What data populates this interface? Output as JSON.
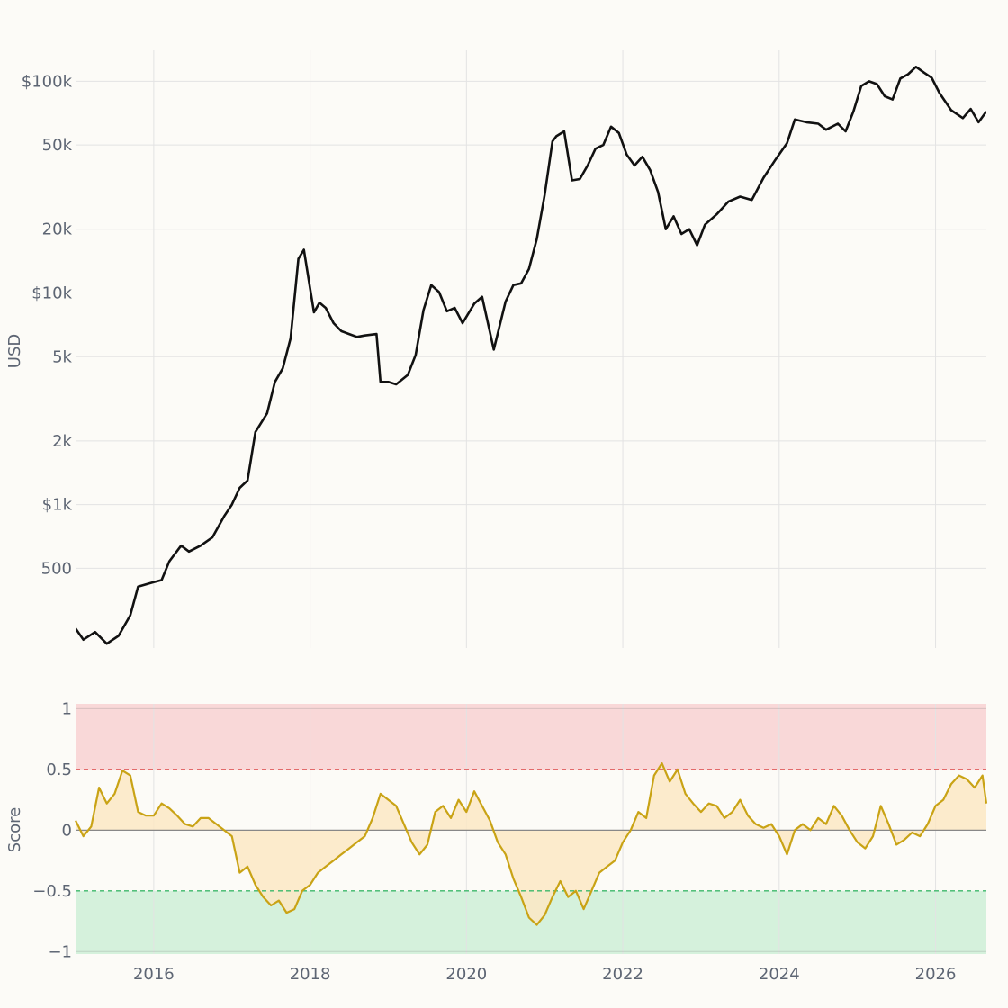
{
  "chart_data": [
    {
      "type": "line",
      "title": "",
      "xlabel": "",
      "ylabel": "USD",
      "yscale": "log",
      "xlim": [
        2015.0,
        2026.65
      ],
      "ylim": [
        210,
        140000
      ],
      "grid": true,
      "x_ticks": [
        {
          "value": 2016,
          "label": "2016"
        },
        {
          "value": 2018,
          "label": "2018"
        },
        {
          "value": 2020,
          "label": "2020"
        },
        {
          "value": 2022,
          "label": "2022"
        },
        {
          "value": 2024,
          "label": "2024"
        },
        {
          "value": 2026,
          "label": "2026"
        }
      ],
      "y_ticks": [
        {
          "value": 500,
          "label": "500"
        },
        {
          "value": 1000,
          "label": "$1k"
        },
        {
          "value": 2000,
          "label": "2k"
        },
        {
          "value": 5000,
          "label": "5k"
        },
        {
          "value": 10000,
          "label": "$10k"
        },
        {
          "value": 20000,
          "label": "20k"
        },
        {
          "value": 50000,
          "label": "50k"
        },
        {
          "value": 100000,
          "label": "$100k"
        }
      ],
      "series": [
        {
          "color": "#111111",
          "x": [
            2015.0,
            2015.1,
            2015.25,
            2015.4,
            2015.55,
            2015.7,
            2015.8,
            2015.9,
            2016.0,
            2016.1,
            2016.2,
            2016.35,
            2016.45,
            2016.6,
            2016.75,
            2016.9,
            2017.0,
            2017.1,
            2017.2,
            2017.3,
            2017.45,
            2017.55,
            2017.65,
            2017.75,
            2017.85,
            2017.92,
            2018.0,
            2018.05,
            2018.12,
            2018.2,
            2018.3,
            2018.4,
            2018.5,
            2018.6,
            2018.7,
            2018.85,
            2018.9,
            2019.0,
            2019.1,
            2019.25,
            2019.35,
            2019.45,
            2019.55,
            2019.65,
            2019.75,
            2019.85,
            2019.95,
            2020.1,
            2020.2,
            2020.35,
            2020.5,
            2020.6,
            2020.7,
            2020.8,
            2020.9,
            2021.0,
            2021.1,
            2021.15,
            2021.25,
            2021.35,
            2021.45,
            2021.55,
            2021.65,
            2021.75,
            2021.85,
            2021.95,
            2022.05,
            2022.15,
            2022.25,
            2022.35,
            2022.45,
            2022.55,
            2022.65,
            2022.75,
            2022.85,
            2022.95,
            2023.05,
            2023.2,
            2023.35,
            2023.5,
            2023.65,
            2023.8,
            2023.95,
            2024.1,
            2024.2,
            2024.35,
            2024.5,
            2024.6,
            2024.75,
            2024.85,
            2024.95,
            2025.05,
            2025.15,
            2025.25,
            2025.35,
            2025.45,
            2025.55,
            2025.65,
            2025.75,
            2025.85,
            2025.95,
            2026.05,
            2026.2,
            2026.35,
            2026.45,
            2026.55,
            2026.65
          ],
          "values": [
            260,
            230,
            250,
            220,
            240,
            300,
            410,
            420,
            430,
            440,
            540,
            640,
            600,
            640,
            700,
            880,
            1000,
            1200,
            1300,
            2200,
            2700,
            3800,
            4400,
            6100,
            14500,
            16000,
            10500,
            8100,
            9000,
            8500,
            7200,
            6600,
            6400,
            6200,
            6300,
            6400,
            3800,
            3800,
            3700,
            4100,
            5100,
            8300,
            10900,
            10100,
            8200,
            8500,
            7200,
            8900,
            9600,
            5400,
            9100,
            10900,
            11100,
            13000,
            18000,
            29000,
            52000,
            55000,
            58000,
            34000,
            34500,
            40000,
            48000,
            50000,
            61000,
            57000,
            45000,
            40000,
            44000,
            38000,
            30000,
            20000,
            23000,
            19000,
            20000,
            16800,
            21000,
            23500,
            27000,
            28500,
            27500,
            35000,
            42500,
            51000,
            66000,
            64000,
            63000,
            59000,
            63000,
            58000,
            72000,
            95000,
            100000,
            97000,
            85000,
            82000,
            103000,
            108000,
            117000,
            110000,
            104000,
            88000,
            73000,
            67000,
            74000,
            64000,
            72000
          ]
        }
      ]
    },
    {
      "type": "area",
      "title": "",
      "xlabel": "",
      "ylabel": "Score",
      "xlim": [
        2015.0,
        2026.65
      ],
      "ylim": [
        -1.02,
        1.04
      ],
      "grid": true,
      "x_ticks": [
        {
          "value": 2016,
          "label": "2016"
        },
        {
          "value": 2018,
          "label": "2018"
        },
        {
          "value": 2020,
          "label": "2020"
        },
        {
          "value": 2022,
          "label": "2022"
        },
        {
          "value": 2024,
          "label": "2024"
        },
        {
          "value": 2026,
          "label": "2026"
        }
      ],
      "y_ticks": [
        {
          "value": 1,
          "label": "1"
        },
        {
          "value": 0.5,
          "label": "0.5"
        },
        {
          "value": 0,
          "label": "0"
        },
        {
          "value": -0.5,
          "label": "−0.5"
        },
        {
          "value": -1,
          "label": "−1"
        }
      ],
      "bands": [
        {
          "from": 0.5,
          "to": 1.04,
          "color": "#f9d8d8"
        },
        {
          "from": -1.02,
          "to": -0.5,
          "color": "#d5f1dc"
        }
      ],
      "thresholds": [
        {
          "value": 0.5,
          "color": "#e05a5a",
          "dash": true
        },
        {
          "value": -0.5,
          "color": "#3cb86a",
          "dash": true
        },
        {
          "value": 0,
          "color": "#888888",
          "dash": false
        }
      ],
      "series": [
        {
          "color": "#c9a315",
          "fill": "#fbe8c4",
          "x": [
            2015.0,
            2015.1,
            2015.2,
            2015.3,
            2015.4,
            2015.5,
            2015.6,
            2015.7,
            2015.8,
            2015.9,
            2016.0,
            2016.1,
            2016.2,
            2016.3,
            2016.4,
            2016.5,
            2016.6,
            2016.7,
            2016.8,
            2016.9,
            2017.0,
            2017.1,
            2017.2,
            2017.3,
            2017.4,
            2017.5,
            2017.6,
            2017.7,
            2017.8,
            2017.9,
            2018.0,
            2018.1,
            2018.2,
            2018.3,
            2018.4,
            2018.5,
            2018.6,
            2018.7,
            2018.8,
            2018.9,
            2019.0,
            2019.1,
            2019.2,
            2019.3,
            2019.4,
            2019.5,
            2019.6,
            2019.7,
            2019.8,
            2019.9,
            2020.0,
            2020.1,
            2020.2,
            2020.3,
            2020.4,
            2020.5,
            2020.6,
            2020.7,
            2020.8,
            2020.9,
            2021.0,
            2021.1,
            2021.2,
            2021.3,
            2021.4,
            2021.5,
            2021.6,
            2021.7,
            2021.8,
            2021.9,
            2022.0,
            2022.1,
            2022.2,
            2022.3,
            2022.4,
            2022.5,
            2022.6,
            2022.7,
            2022.8,
            2022.9,
            2023.0,
            2023.1,
            2023.2,
            2023.3,
            2023.4,
            2023.5,
            2023.6,
            2023.7,
            2023.8,
            2023.9,
            2024.0,
            2024.1,
            2024.2,
            2024.3,
            2024.4,
            2024.5,
            2024.6,
            2024.7,
            2024.8,
            2024.9,
            2025.0,
            2025.1,
            2025.2,
            2025.3,
            2025.4,
            2025.5,
            2025.6,
            2025.7,
            2025.8,
            2025.9,
            2026.0,
            2026.1,
            2026.2,
            2026.3,
            2026.4,
            2026.5,
            2026.6,
            2026.65
          ],
          "values": [
            0.08,
            -0.05,
            0.03,
            0.35,
            0.22,
            0.3,
            0.49,
            0.45,
            0.15,
            0.12,
            0.12,
            0.22,
            0.18,
            0.12,
            0.05,
            0.03,
            0.1,
            0.1,
            0.05,
            0.0,
            -0.05,
            -0.35,
            -0.3,
            -0.45,
            -0.55,
            -0.62,
            -0.58,
            -0.68,
            -0.65,
            -0.5,
            -0.45,
            -0.35,
            -0.3,
            -0.25,
            -0.2,
            -0.15,
            -0.1,
            -0.05,
            0.1,
            0.3,
            0.25,
            0.2,
            0.05,
            -0.1,
            -0.2,
            -0.12,
            0.15,
            0.2,
            0.1,
            0.25,
            0.15,
            0.32,
            0.2,
            0.08,
            -0.1,
            -0.2,
            -0.4,
            -0.55,
            -0.72,
            -0.78,
            -0.7,
            -0.55,
            -0.42,
            -0.55,
            -0.5,
            -0.65,
            -0.5,
            -0.35,
            -0.3,
            -0.25,
            -0.1,
            0.0,
            0.15,
            0.1,
            0.45,
            0.55,
            0.4,
            0.5,
            0.3,
            0.22,
            0.15,
            0.22,
            0.2,
            0.1,
            0.15,
            0.25,
            0.12,
            0.05,
            0.02,
            0.05,
            -0.05,
            -0.2,
            0.0,
            0.05,
            0.0,
            0.1,
            0.05,
            0.2,
            0.12,
            0.0,
            -0.1,
            -0.15,
            -0.05,
            0.2,
            0.05,
            -0.12,
            -0.08,
            -0.02,
            -0.05,
            0.05,
            0.2,
            0.25,
            0.38,
            0.45,
            0.42,
            0.35,
            0.45,
            0.22
          ]
        }
      ]
    }
  ]
}
